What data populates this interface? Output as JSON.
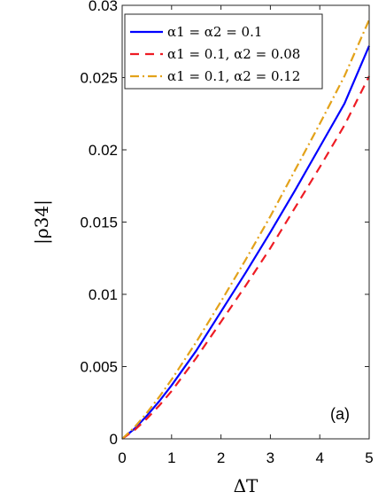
{
  "chart_data": {
    "type": "line",
    "title": "",
    "xlabel": "ΔT",
    "ylabel": "|ρ34|",
    "xlim": [
      0,
      5
    ],
    "ylim": [
      0,
      0.03
    ],
    "x_ticks": [
      "0",
      "1",
      "2",
      "3",
      "4",
      "5"
    ],
    "y_ticks": [
      "0",
      "0.005",
      "0.01",
      "0.015",
      "0.02",
      "0.025",
      "0.03"
    ],
    "grid": false,
    "legend_position": "top-left",
    "annotation": "(a)",
    "series": [
      {
        "name": "α1 = α2 = 0.1",
        "color": "#0000ff",
        "line_style": "solid",
        "x": [
          0,
          0.25,
          0.5,
          0.75,
          1,
          1.5,
          2,
          2.5,
          3,
          3.5,
          4,
          4.5,
          5
        ],
        "values": [
          0,
          0.0007,
          0.0016,
          0.0026,
          0.0037,
          0.0061,
          0.0088,
          0.0115,
          0.0143,
          0.0172,
          0.0202,
          0.0232,
          0.0272
        ]
      },
      {
        "name": "α1 = 0.1, α2 = 0.08",
        "color": "#ee1c24",
        "line_style": "dashed",
        "x": [
          0,
          0.25,
          0.5,
          0.75,
          1,
          1.5,
          2,
          2.5,
          3,
          3.5,
          4,
          4.5,
          5
        ],
        "values": [
          0,
          0.0006,
          0.0014,
          0.0023,
          0.0033,
          0.0056,
          0.0081,
          0.0106,
          0.0132,
          0.016,
          0.0188,
          0.0217,
          0.0251
        ]
      },
      {
        "name": "α1 = 0.1, α2 = 0.12",
        "color": "#e3a21a",
        "line_style": "dashdot",
        "x": [
          0,
          0.25,
          0.5,
          0.75,
          1,
          1.5,
          2,
          2.5,
          3,
          3.5,
          4,
          4.5,
          5
        ],
        "values": [
          0,
          0.0008,
          0.0018,
          0.0029,
          0.0041,
          0.0067,
          0.0095,
          0.0124,
          0.0154,
          0.0186,
          0.0218,
          0.0251,
          0.029
        ]
      }
    ]
  }
}
